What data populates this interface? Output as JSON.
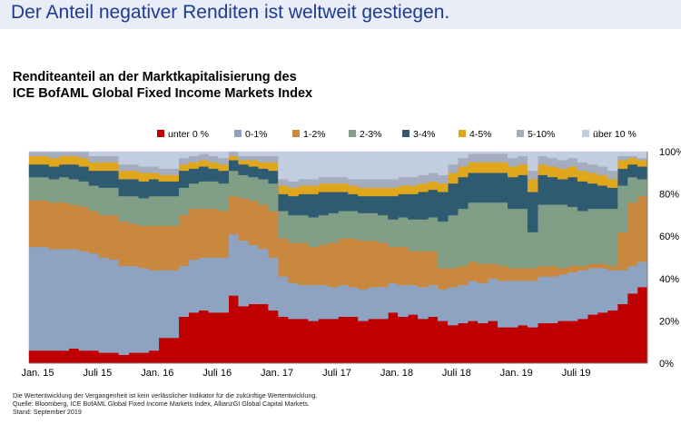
{
  "headline": "Der Anteil negativer Renditen ist weltweit gestiegen.",
  "chart_data": {
    "type": "area",
    "title": "Renditeanteil an der Marktkapitalisierung des",
    "subtitle": "ICE BofAML Global Fixed Income Markets Index",
    "xlabel": "",
    "ylabel": "",
    "ylim": [
      0,
      100
    ],
    "y_ticks": [
      "0%",
      "20%",
      "40%",
      "60%",
      "80%",
      "100%"
    ],
    "x_ticks": [
      "Jan. 15",
      "Juli 15",
      "Jan. 16",
      "Juli 16",
      "Jan. 17",
      "Juli 17",
      "Jan. 18",
      "Juli 18",
      "Jan. 19",
      "Juli 19"
    ],
    "legend_position": "top",
    "grid": false,
    "stacked": true,
    "x_start": "Jan. 15",
    "x_end": "Sep. 19",
    "series": [
      {
        "name": "unter 0 %",
        "color": "#c00000",
        "values": [
          6,
          6,
          6,
          6,
          7,
          6,
          6,
          5,
          5,
          4,
          5,
          5,
          6,
          12,
          12,
          22,
          24,
          25,
          24,
          24,
          32,
          27,
          28,
          28,
          25,
          22,
          21,
          21,
          20,
          21,
          21,
          22,
          22,
          20,
          21,
          21,
          24,
          22,
          23,
          21,
          22,
          20,
          18,
          19,
          20,
          19,
          20,
          17,
          17,
          18,
          17,
          19,
          19,
          20,
          20,
          21,
          23,
          24,
          25,
          28,
          33,
          36
        ]
      },
      {
        "name": "0-1%",
        "color": "#8ea3c2",
        "values": [
          49,
          49,
          48,
          48,
          47,
          47,
          46,
          45,
          44,
          42,
          41,
          40,
          38,
          32,
          32,
          24,
          25,
          25,
          26,
          26,
          29,
          31,
          28,
          26,
          25,
          19,
          17,
          16,
          17,
          16,
          15,
          15,
          14,
          15,
          15,
          15,
          14,
          15,
          14,
          15,
          15,
          15,
          18,
          18,
          19,
          19,
          20,
          22,
          22,
          21,
          22,
          22,
          22,
          22,
          23,
          23,
          22,
          21,
          19,
          16,
          13,
          12
        ]
      },
      {
        "name": "1-2%",
        "color": "#c9883e",
        "values": [
          22,
          22,
          22,
          22,
          21,
          21,
          20,
          20,
          21,
          21,
          20,
          20,
          21,
          21,
          21,
          24,
          24,
          23,
          23,
          22,
          18,
          20,
          21,
          21,
          22,
          18,
          19,
          20,
          18,
          19,
          21,
          22,
          23,
          23,
          22,
          21,
          17,
          18,
          16,
          17,
          16,
          10,
          9,
          9,
          9,
          9,
          7,
          7,
          6,
          6,
          6,
          5,
          5,
          3,
          3,
          2,
          2,
          2,
          2,
          18,
          30,
          31
        ]
      },
      {
        "name": "2-3%",
        "color": "#809f86",
        "values": [
          11,
          11,
          11,
          12,
          12,
          12,
          12,
          13,
          13,
          12,
          13,
          13,
          14,
          14,
          14,
          13,
          12,
          13,
          13,
          13,
          12,
          11,
          11,
          12,
          13,
          13,
          13,
          13,
          14,
          14,
          14,
          13,
          13,
          13,
          13,
          13,
          13,
          14,
          15,
          15,
          16,
          22,
          25,
          27,
          28,
          29,
          29,
          30,
          28,
          28,
          17,
          29,
          29,
          30,
          28,
          26,
          26,
          26,
          27,
          22,
          12,
          8
        ]
      },
      {
        "name": "3-4%",
        "color": "#2e5b72",
        "values": [
          6,
          6,
          6,
          6,
          7,
          7,
          7,
          8,
          8,
          8,
          8,
          8,
          8,
          7,
          7,
          8,
          7,
          7,
          6,
          6,
          5,
          5,
          5,
          5,
          6,
          8,
          9,
          10,
          11,
          11,
          10,
          9,
          8,
          8,
          8,
          9,
          11,
          11,
          12,
          13,
          13,
          14,
          15,
          15,
          14,
          14,
          14,
          14,
          15,
          16,
          19,
          14,
          13,
          12,
          14,
          14,
          12,
          11,
          10,
          8,
          6,
          6
        ]
      },
      {
        "name": "4-5%",
        "color": "#e0a71d",
        "values": [
          4,
          4,
          4,
          4,
          4,
          4,
          4,
          4,
          4,
          4,
          4,
          4,
          3,
          3,
          3,
          3,
          3,
          3,
          3,
          3,
          2,
          2,
          3,
          3,
          4,
          4,
          4,
          4,
          4,
          4,
          4,
          4,
          4,
          4,
          4,
          4,
          4,
          4,
          4,
          4,
          4,
          4,
          5,
          5,
          5,
          5,
          5,
          5,
          5,
          5,
          6,
          5,
          5,
          5,
          5,
          5,
          5,
          5,
          4,
          4,
          3,
          3
        ]
      },
      {
        "name": "5-10%",
        "color": "#a4adbf",
        "values": [
          2,
          2,
          3,
          2,
          2,
          3,
          3,
          3,
          3,
          3,
          3,
          3,
          3,
          3,
          3,
          3,
          3,
          3,
          3,
          3,
          2,
          2,
          2,
          3,
          3,
          3,
          3,
          3,
          3,
          3,
          3,
          3,
          3,
          4,
          4,
          4,
          4,
          4,
          4,
          4,
          4,
          4,
          4,
          4,
          4,
          4,
          4,
          4,
          4,
          4,
          4,
          4,
          4,
          4,
          4,
          4,
          4,
          4,
          4,
          2,
          1,
          1
        ]
      },
      {
        "name": "über 10 %",
        "color": "#c2cde0",
        "values": [
          0,
          0,
          0,
          0,
          0,
          0,
          2,
          2,
          2,
          6,
          6,
          7,
          7,
          8,
          8,
          3,
          2,
          1,
          2,
          3,
          0,
          2,
          2,
          2,
          2,
          13,
          14,
          13,
          13,
          12,
          12,
          12,
          13,
          13,
          13,
          13,
          13,
          12,
          12,
          11,
          10,
          11,
          6,
          3,
          1,
          1,
          1,
          1,
          3,
          2,
          9,
          2,
          3,
          4,
          3,
          5,
          6,
          7,
          9,
          2,
          2,
          3
        ]
      }
    ]
  },
  "footnotes": [
    "Die Wertentwicklung der Vergangenheit ist kein verlässlicher Indikator für die zukünftige Wertentwicklung.",
    "Quelle: Bloomberg, ICE BofAML Global Fixed Income Markets Index, AllianzGI Global Capital Markets.",
    "Stand: September 2019"
  ]
}
